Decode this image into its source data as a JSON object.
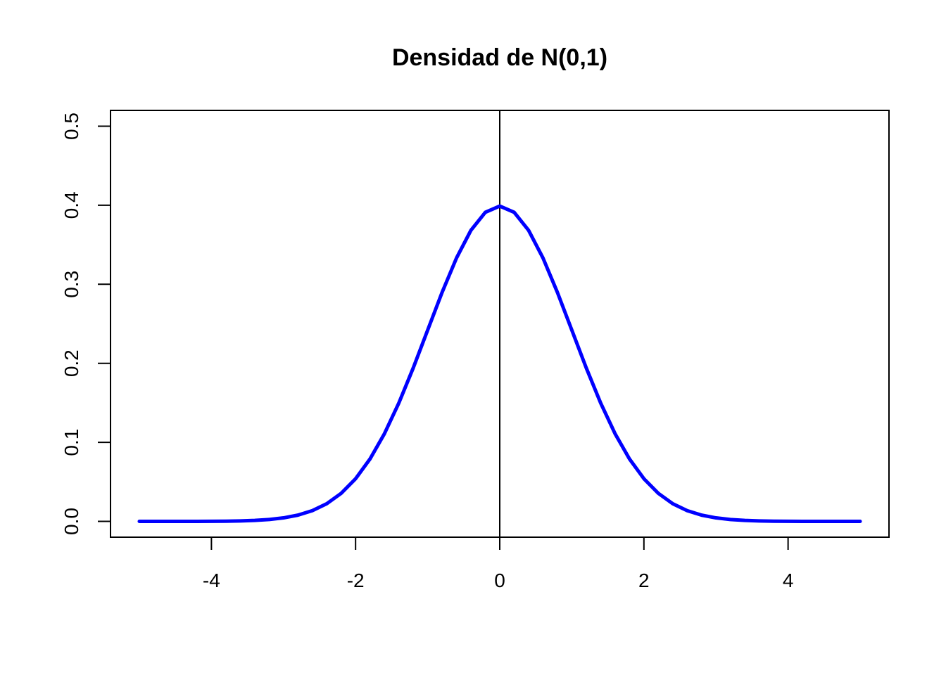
{
  "chart_data": {
    "type": "line",
    "title": "Densidad de N(0,1)",
    "xlabel": "",
    "ylabel": "",
    "xlim": [
      -5.4,
      5.4
    ],
    "ylim": [
      -0.02,
      0.52
    ],
    "x_ticks": [
      -4,
      -2,
      0,
      2,
      4
    ],
    "x_tick_labels": [
      "-4",
      "-2",
      "0",
      "2",
      "4"
    ],
    "y_ticks": [
      0.0,
      0.1,
      0.2,
      0.3,
      0.4,
      0.5
    ],
    "y_tick_labels": [
      "0.0",
      "0.1",
      "0.2",
      "0.3",
      "0.4",
      "0.5"
    ],
    "grid": false,
    "vertical_line_x": 0,
    "series": [
      {
        "color": "#0000ff",
        "x": [
          -5,
          -4.8,
          -4.6,
          -4.4,
          -4.2,
          -4,
          -3.8,
          -3.6,
          -3.4,
          -3.2,
          -3,
          -2.8,
          -2.6,
          -2.4,
          -2.2,
          -2,
          -1.8,
          -1.6,
          -1.4,
          -1.2,
          -1,
          -0.8,
          -0.6,
          -0.4,
          -0.2,
          0,
          0.2,
          0.4,
          0.6,
          0.8,
          1,
          1.2,
          1.4,
          1.6,
          1.8,
          2,
          2.2,
          2.4,
          2.6,
          2.8,
          3,
          3.2,
          3.4,
          3.6,
          3.8,
          4,
          4.2,
          4.4,
          4.6,
          4.8,
          5
        ],
        "y": [
          1.5e-06,
          4e-06,
          1e-05,
          2.44e-05,
          5.89e-05,
          0.0001338,
          0.0002919,
          0.0006119,
          0.0012322,
          0.0023841,
          0.0044318,
          0.0079155,
          0.013583,
          0.0223945,
          0.0354746,
          0.053991,
          0.0789502,
          0.1109208,
          0.1497275,
          0.1941861,
          0.2419707,
          0.2896916,
          0.3332246,
          0.3682701,
          0.3910427,
          0.3989423,
          0.3910427,
          0.3682701,
          0.3332246,
          0.2896916,
          0.2419707,
          0.1941861,
          0.1497275,
          0.1109208,
          0.0789502,
          0.053991,
          0.0354746,
          0.0223945,
          0.013583,
          0.0079155,
          0.0044318,
          0.0023841,
          0.0012322,
          0.0006119,
          0.0002919,
          0.0001338,
          5.89e-05,
          2.44e-05,
          1e-05,
          4e-06,
          1.5e-06
        ]
      }
    ]
  }
}
